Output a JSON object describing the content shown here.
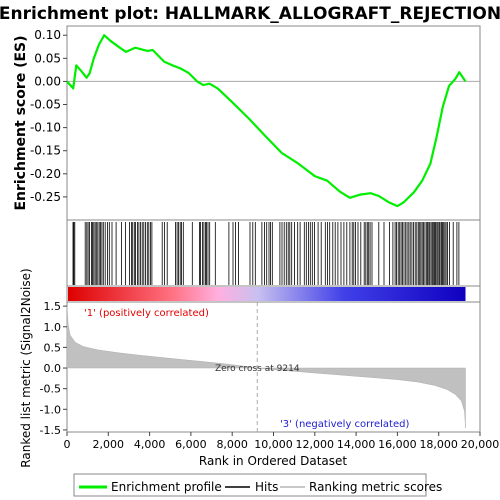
{
  "chart_data": {
    "type": "line",
    "title": "Enrichment plot: HALLMARK_ALLOGRAFT_REJECTION",
    "panels": {
      "enrichment": {
        "ylabel": "Enrichment score (ES)",
        "ylim": [
          -0.3,
          0.12
        ],
        "yticks": [
          0.1,
          0.05,
          0.0,
          -0.05,
          -0.1,
          -0.15,
          -0.2,
          -0.25
        ],
        "ytick_labels": [
          "0.10",
          "0.05",
          "0.00",
          "-0.05",
          "-0.10",
          "-0.15",
          "-0.20",
          "-0.25"
        ],
        "series_name": "Enrichment profile",
        "color": "#00ee00",
        "points": [
          [
            0,
            0.0
          ],
          [
            300,
            -0.015
          ],
          [
            450,
            0.035
          ],
          [
            700,
            0.022
          ],
          [
            950,
            0.008
          ],
          [
            1100,
            0.018
          ],
          [
            1300,
            0.05
          ],
          [
            1550,
            0.08
          ],
          [
            1800,
            0.1
          ],
          [
            2100,
            0.088
          ],
          [
            2500,
            0.075
          ],
          [
            2850,
            0.064
          ],
          [
            3300,
            0.073
          ],
          [
            3900,
            0.066
          ],
          [
            4150,
            0.068
          ],
          [
            4700,
            0.043
          ],
          [
            5100,
            0.035
          ],
          [
            5500,
            0.028
          ],
          [
            5900,
            0.018
          ],
          [
            6300,
            0.0
          ],
          [
            6600,
            -0.008
          ],
          [
            6900,
            -0.005
          ],
          [
            7300,
            -0.015
          ],
          [
            8000,
            -0.045
          ],
          [
            8800,
            -0.08
          ],
          [
            9600,
            -0.118
          ],
          [
            10400,
            -0.155
          ],
          [
            11200,
            -0.178
          ],
          [
            12000,
            -0.205
          ],
          [
            12600,
            -0.215
          ],
          [
            13200,
            -0.238
          ],
          [
            13700,
            -0.252
          ],
          [
            14200,
            -0.245
          ],
          [
            14700,
            -0.242
          ],
          [
            15100,
            -0.248
          ],
          [
            15600,
            -0.262
          ],
          [
            16000,
            -0.27
          ],
          [
            16300,
            -0.262
          ],
          [
            16800,
            -0.24
          ],
          [
            17200,
            -0.215
          ],
          [
            17600,
            -0.178
          ],
          [
            17900,
            -0.12
          ],
          [
            18200,
            -0.055
          ],
          [
            18500,
            -0.01
          ],
          [
            18800,
            0.005
          ],
          [
            19000,
            0.02
          ],
          [
            19300,
            0.0
          ]
        ]
      },
      "hits": {
        "series_name": "Hits",
        "positions": [
          290,
          330,
          380,
          880,
          960,
          1020,
          1090,
          1180,
          1230,
          1300,
          1360,
          1420,
          1490,
          1560,
          1620,
          1690,
          1760,
          1850,
          1960,
          2050,
          2180,
          2380,
          2640,
          2830,
          3020,
          3120,
          3180,
          3260,
          3320,
          3410,
          3480,
          3560,
          3640,
          3720,
          3800,
          3890,
          3960,
          4040,
          4110,
          4610,
          4720,
          4850,
          5260,
          5330,
          5400,
          5480,
          5550,
          5630,
          6070,
          6410,
          6470,
          6560,
          6630,
          6700,
          6760,
          6830,
          6910,
          7180,
          7840,
          8040,
          8160,
          8300,
          8860,
          9000,
          9120,
          9440,
          9560,
          9670,
          9780,
          9860,
          9940,
          10310,
          10410,
          10520,
          10620,
          10710,
          10790,
          10880,
          11020,
          11170,
          11290,
          11490,
          11590,
          11690,
          11780,
          11880,
          11980,
          12160,
          12310,
          12510,
          12610,
          12720,
          12870,
          12990,
          13120,
          13270,
          13410,
          13550,
          13700,
          13810,
          13890,
          13970,
          14090,
          14230,
          14390,
          14470,
          14540,
          14610,
          14680,
          14770,
          15100,
          15350,
          15620,
          15780,
          15890,
          15960,
          16040,
          16110,
          16180,
          16250,
          16320,
          16400,
          16470,
          16550,
          16620,
          16700,
          16780,
          16860,
          16940,
          17010,
          17080,
          17140,
          17200,
          17260,
          17330,
          17400,
          17460,
          17520,
          17570,
          17630,
          17690,
          17740,
          17800,
          17850,
          17910,
          17960,
          18020,
          18070,
          18130,
          18190,
          18240,
          18300,
          18360,
          18430,
          18520,
          18700,
          18880,
          18980
        ]
      },
      "ranked_metric": {
        "ylabel": "Ranked list metric (Signal2Noise)",
        "ylim": [
          -1.55,
          1.6
        ],
        "yticks": [
          1.5,
          1.0,
          0.5,
          0.0,
          -0.5,
          -1.0,
          -1.5
        ],
        "ytick_labels": [
          "1.5",
          "1.0",
          "0.5",
          "0.0",
          "-0.5",
          "-1.0",
          "-1.5"
        ],
        "series_name": "Ranking metric scores",
        "color": "#c0c0c0",
        "points": [
          [
            0,
            1.5
          ],
          [
            60,
            1.05
          ],
          [
            150,
            0.8
          ],
          [
            400,
            0.62
          ],
          [
            800,
            0.52
          ],
          [
            1500,
            0.44
          ],
          [
            2500,
            0.37
          ],
          [
            3500,
            0.31
          ],
          [
            4500,
            0.26
          ],
          [
            5500,
            0.21
          ],
          [
            6500,
            0.16
          ],
          [
            7500,
            0.11
          ],
          [
            8500,
            0.05
          ],
          [
            9214,
            0.0
          ],
          [
            10000,
            -0.04
          ],
          [
            11000,
            -0.08
          ],
          [
            12000,
            -0.12
          ],
          [
            13000,
            -0.16
          ],
          [
            14000,
            -0.2
          ],
          [
            15000,
            -0.24
          ],
          [
            16000,
            -0.28
          ],
          [
            17000,
            -0.34
          ],
          [
            17800,
            -0.42
          ],
          [
            18400,
            -0.52
          ],
          [
            18800,
            -0.64
          ],
          [
            19100,
            -0.8
          ],
          [
            19250,
            -1.05
          ],
          [
            19300,
            -1.45
          ]
        ]
      }
    },
    "x_axis": {
      "xlabel": "Rank in Ordered Dataset",
      "xlim": [
        0,
        20000
      ],
      "xticks": [
        0,
        2000,
        4000,
        6000,
        8000,
        10000,
        12000,
        14000,
        16000,
        18000,
        20000
      ],
      "xtick_labels": [
        "0",
        "2,000",
        "4,000",
        "6,000",
        "8,000",
        "10,000",
        "12,000",
        "14,000",
        "16,000",
        "18,000",
        "20,000"
      ],
      "n_ranked": 19300
    },
    "annotations": {
      "positive_label": "'1' (positively correlated)",
      "negative_label": "'3' (negatively correlated)",
      "zero_cross_label": "Zero cross at 9214",
      "zero_cross": 9214
    },
    "heat_bar": {
      "colors": [
        "#dd0000",
        "#ff7080",
        "#ffb0e0",
        "#c8c0f0",
        "#4040e8",
        "#1000c0"
      ],
      "stops": [
        0,
        5000,
        7300,
        9214,
        13400,
        19300
      ]
    },
    "legend": {
      "placement": "bottom",
      "items": [
        "Enrichment profile",
        "Hits",
        "Ranking metric scores"
      ]
    }
  }
}
